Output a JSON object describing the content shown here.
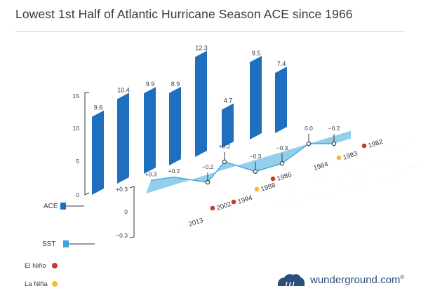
{
  "page": {
    "title": "Lowest 1st Half of Atlantic Hurricane Season ACE since 1966"
  },
  "chart_data": {
    "type": "bar",
    "title": "Lowest 1st Half of Atlantic Hurricane Season ACE since 1966",
    "years": [
      "2013",
      "2002",
      "1994",
      "1988",
      "1986",
      "1984",
      "1983",
      "1982"
    ],
    "series": [
      {
        "name": "ACE",
        "color": "#1f6fbf",
        "values": [
          9.6,
          10.4,
          9.9,
          8.9,
          12.3,
          4.7,
          9.5,
          7.4
        ]
      },
      {
        "name": "SST",
        "color": "#3aa7df",
        "values": [
          0.3,
          0.2,
          -0.2,
          0.2,
          -0.3,
          -0.3,
          0.0,
          -0.2
        ]
      }
    ],
    "ace_value_labels": [
      "9.6",
      "10.4",
      "9.9",
      "8.9",
      "12.3",
      "4.7",
      "9.5",
      "7.4"
    ],
    "sst_value_labels": [
      "+0.3",
      "+0.2",
      "−0.2",
      "+0.2",
      "−0.3",
      "−0.3",
      "0.0",
      "−0.2"
    ],
    "enso": [
      "none",
      "El Niño",
      "El Niño",
      "La Niña",
      "El Niño",
      "none",
      "La Niña",
      "El Niño"
    ],
    "ace_axis": {
      "ticks": [
        "0",
        "5",
        "10",
        "15"
      ],
      "range": [
        0,
        15
      ]
    },
    "sst_axis": {
      "ticks": [
        "+0.3",
        "0",
        "−0.3"
      ],
      "range": [
        -0.3,
        0.3
      ]
    },
    "legend": {
      "ace": "ACE",
      "sst": "SST",
      "el_nino": "El Niño",
      "la_nina": "La Niña",
      "el_nino_color": "#c8392b",
      "la_nina_color": "#f2bb2e"
    }
  },
  "brand": {
    "text": "wunderground.com",
    "mark": "®"
  }
}
